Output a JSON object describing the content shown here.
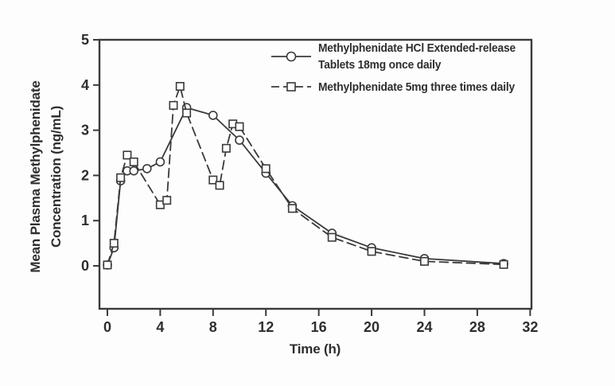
{
  "chart_data": {
    "type": "line",
    "title": "",
    "xlabel": "Time (h)",
    "ylabel_lines": [
      "Mean Plasma Methylphenidate",
      "Concentration (ng/mL)"
    ],
    "x_ticks": [
      0,
      4,
      8,
      12,
      16,
      20,
      24,
      28,
      32
    ],
    "y_ticks": [
      0,
      1,
      2,
      3,
      4,
      5
    ],
    "xlim": [
      -0.6,
      32.1
    ],
    "ylim": [
      -0.95,
      5.0
    ],
    "grid": false,
    "legend_position": "inside-top-right",
    "axis_color": "#3a3a3a",
    "marker_fill": "#fdfdfd",
    "series": [
      {
        "name": "Methylphenidate HCl Extended-release Tablets 18mg once daily",
        "legend_lines": [
          "Methylphenidate HCl Extended-release",
          "Tablets 18mg once daily"
        ],
        "marker": "circle",
        "line_style": "solid",
        "color": "#3a3a3a",
        "points": [
          [
            0,
            0.02
          ],
          [
            0.5,
            0.4
          ],
          [
            1,
            1.88
          ],
          [
            1.5,
            2.1
          ],
          [
            2,
            2.1
          ],
          [
            3,
            2.15
          ],
          [
            4,
            2.3
          ],
          [
            6,
            3.5
          ],
          [
            8,
            3.33
          ],
          [
            10,
            2.78
          ],
          [
            12,
            2.05
          ],
          [
            14,
            1.33
          ],
          [
            17,
            0.72
          ],
          [
            20,
            0.4
          ],
          [
            24,
            0.16
          ],
          [
            30,
            0.05
          ]
        ]
      },
      {
        "name": "Methylphenidate 5mg three times daily",
        "legend_lines": [
          "Methylphenidate 5mg three times daily"
        ],
        "marker": "square",
        "line_style": "dashed",
        "color": "#3a3a3a",
        "points": [
          [
            0,
            0.02
          ],
          [
            0.5,
            0.5
          ],
          [
            1,
            1.95
          ],
          [
            1.5,
            2.45
          ],
          [
            2,
            2.3
          ],
          [
            4,
            1.35
          ],
          [
            4.5,
            1.45
          ],
          [
            5,
            3.55
          ],
          [
            5.5,
            3.97
          ],
          [
            6,
            3.38
          ],
          [
            8,
            1.9
          ],
          [
            8.5,
            1.78
          ],
          [
            9,
            2.6
          ],
          [
            9.5,
            3.14
          ],
          [
            10,
            3.08
          ],
          [
            12,
            2.15
          ],
          [
            14,
            1.27
          ],
          [
            17,
            0.63
          ],
          [
            20,
            0.32
          ],
          [
            24,
            0.1
          ],
          [
            30,
            0.03
          ]
        ]
      }
    ]
  }
}
